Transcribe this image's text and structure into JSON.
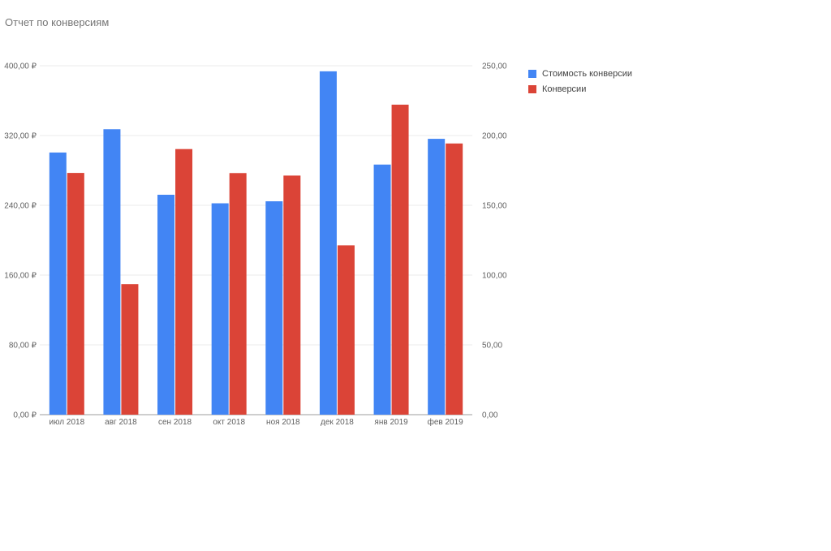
{
  "chart_data": {
    "type": "bar",
    "title": "Отчет по конверсиям",
    "categories": [
      "июл 2018",
      "авг 2018",
      "сен 2018",
      "окт 2018",
      "ноя 2018",
      "дек 2018",
      "янв 2019",
      "фев 2019"
    ],
    "series": [
      {
        "name": "Стоимость конверсии",
        "axis": "left",
        "color": "#4285f4",
        "values": [
          300.5,
          327.2,
          252.1,
          242.3,
          244.6,
          393.6,
          286.7,
          316.2
        ]
      },
      {
        "name": "Конверсии",
        "axis": "right",
        "color": "#db4437",
        "values": [
          173.2,
          93.5,
          190.3,
          173.1,
          171.3,
          121.3,
          222.1,
          194.3
        ]
      }
    ],
    "y_left": {
      "ylim": [
        0,
        400
      ],
      "ticks": [
        "0,00 ₽",
        "80,00 ₽",
        "160,00 ₽",
        "240,00 ₽",
        "320,00 ₽",
        "400,00 ₽"
      ]
    },
    "y_right": {
      "ylim": [
        0,
        250
      ],
      "ticks": [
        "0,00",
        "50,00",
        "100,00",
        "150,00",
        "200,00",
        "250,00"
      ]
    },
    "legend_position": "right",
    "grid": true
  }
}
